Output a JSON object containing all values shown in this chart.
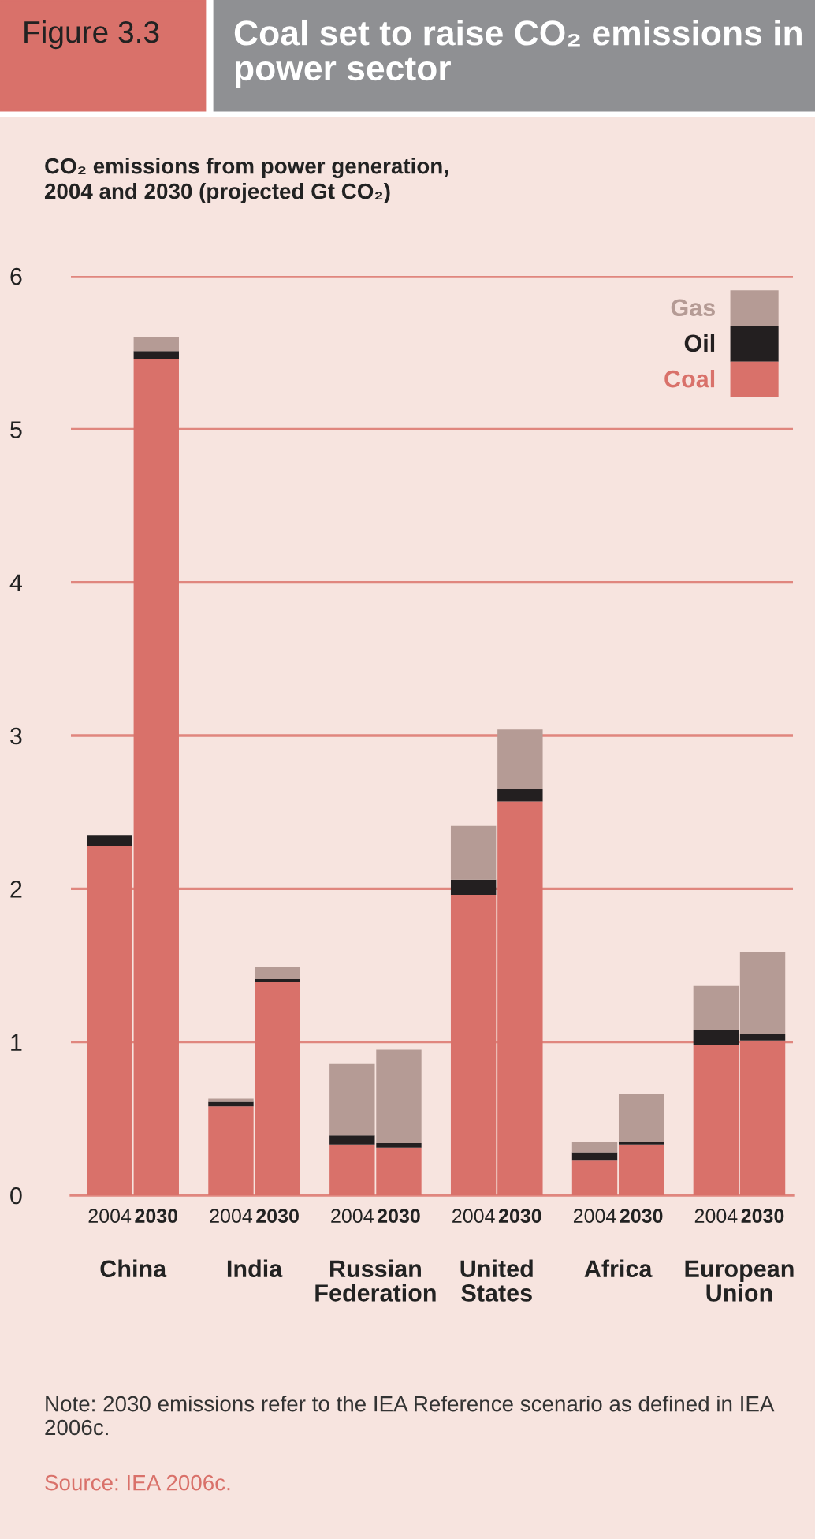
{
  "chart_data": {
    "type": "bar",
    "stacked": true,
    "title": "Coal set to raise CO₂ emissions in power sector",
    "subtitle": "Figure 3.3",
    "ylabel": "CO₂ emissions from power generation,\n2004 and 2030 (projected Gt CO₂)",
    "categories": [
      "2004",
      "2030",
      "2004",
      "2030",
      "2004",
      "2030",
      "2004",
      "2030",
      "2004",
      "2030",
      "2004",
      "2030"
    ],
    "series": [
      {
        "name": "Coal",
        "color": "#d9716a",
        "values": [
          2.28,
          5.46,
          0.58,
          1.39,
          0.33,
          0.31,
          1.96,
          2.57,
          0.23,
          0.33,
          0.98,
          1.01
        ]
      },
      {
        "name": "Oil",
        "color": "#231f20",
        "values": [
          0.07,
          0.05,
          0.03,
          0.02,
          0.06,
          0.03,
          0.1,
          0.08,
          0.05,
          0.02,
          0.1,
          0.04
        ]
      },
      {
        "name": "Gas",
        "color": "#b59b95",
        "values": [
          0,
          0.09,
          0.02,
          0.08,
          0.47,
          0.61,
          0.35,
          0.39,
          0.07,
          0.31,
          0.29,
          0.54
        ]
      }
    ],
    "ylim": [
      0,
      6
    ],
    "yticks": [
      0,
      1,
      2,
      3,
      4,
      5,
      6
    ],
    "grid": "y",
    "legend": "top right",
    "annotations": [
      "China",
      "India",
      "Russian\nFederation",
      "United\nStates",
      "Africa",
      "European\nUnion",
      "Note: 2030 emissions refer to the IEA Reference scenario as defined in IEA 2006c.",
      "Source: IEA 2006c."
    ]
  }
}
